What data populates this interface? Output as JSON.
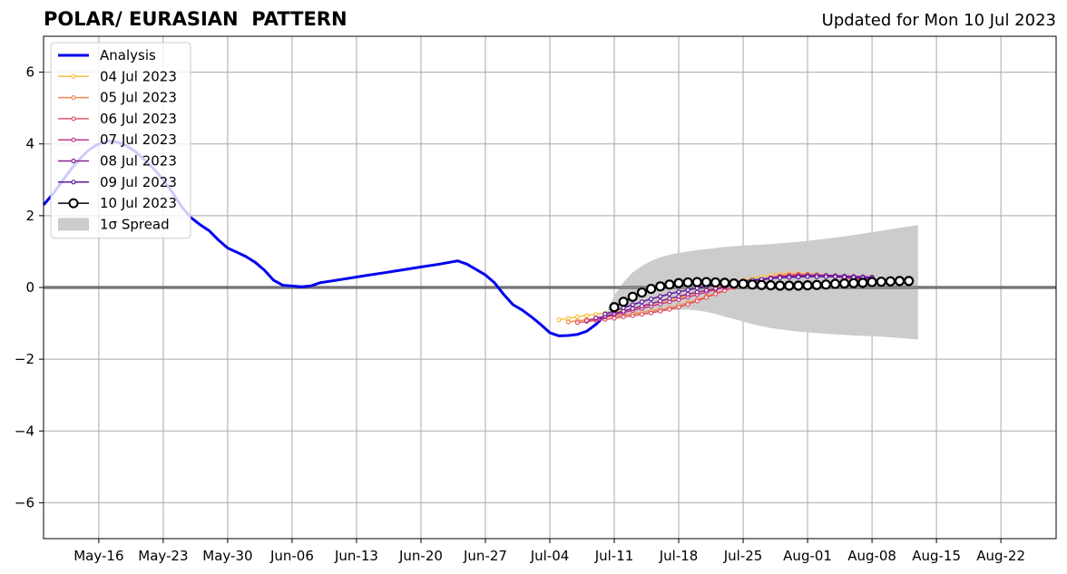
{
  "header": {
    "title": "POLAR/ EURASIAN  PATTERN",
    "updated": "Updated for Mon 10 Jul 2023"
  },
  "chart_data": {
    "type": "line",
    "title": "POLAR/ EURASIAN  PATTERN",
    "xlabel": "",
    "ylabel": "",
    "x_axis_type": "date",
    "xlim": [
      "2023-05-10",
      "2023-08-28"
    ],
    "ylim": [
      -7,
      7
    ],
    "x_ticks": [
      {
        "date": "2023-05-16",
        "label": "May-16"
      },
      {
        "date": "2023-05-23",
        "label": "May-23"
      },
      {
        "date": "2023-05-30",
        "label": "May-30"
      },
      {
        "date": "2023-06-06",
        "label": "Jun-06"
      },
      {
        "date": "2023-06-13",
        "label": "Jun-13"
      },
      {
        "date": "2023-06-20",
        "label": "Jun-20"
      },
      {
        "date": "2023-06-27",
        "label": "Jun-27"
      },
      {
        "date": "2023-07-04",
        "label": "Jul-04"
      },
      {
        "date": "2023-07-11",
        "label": "Jul-11"
      },
      {
        "date": "2023-07-18",
        "label": "Jul-18"
      },
      {
        "date": "2023-07-25",
        "label": "Jul-25"
      },
      {
        "date": "2023-08-01",
        "label": "Aug-01"
      },
      {
        "date": "2023-08-08",
        "label": "Aug-08"
      },
      {
        "date": "2023-08-15",
        "label": "Aug-15"
      },
      {
        "date": "2023-08-22",
        "label": "Aug-22"
      }
    ],
    "y_ticks": [
      {
        "value": 6,
        "label": "6"
      },
      {
        "value": 4,
        "label": "4"
      },
      {
        "value": 2,
        "label": "2"
      },
      {
        "value": 0,
        "label": "0"
      },
      {
        "value": -2,
        "label": "−2"
      },
      {
        "value": -4,
        "label": "−4"
      },
      {
        "value": -6,
        "label": "−6"
      }
    ],
    "grid": true,
    "zero_line": true,
    "legend_position": "top-left",
    "analysis": {
      "name": "Analysis",
      "color": "#0000ee",
      "points": [
        [
          "2023-05-10",
          2.3
        ],
        [
          "2023-05-11",
          2.6
        ],
        [
          "2023-05-12",
          2.95
        ],
        [
          "2023-05-13",
          3.3
        ],
        [
          "2023-05-14",
          3.6
        ],
        [
          "2023-05-15",
          3.85
        ],
        [
          "2023-05-16",
          4.0
        ],
        [
          "2023-05-17",
          4.08
        ],
        [
          "2023-05-18",
          4.05
        ],
        [
          "2023-05-19",
          3.95
        ],
        [
          "2023-05-20",
          3.78
        ],
        [
          "2023-05-21",
          3.55
        ],
        [
          "2023-05-22",
          3.3
        ],
        [
          "2023-05-23",
          3.0
        ],
        [
          "2023-05-24",
          2.65
        ],
        [
          "2023-05-25",
          2.25
        ],
        [
          "2023-05-26",
          1.95
        ],
        [
          "2023-05-27",
          1.75
        ],
        [
          "2023-05-28",
          1.58
        ],
        [
          "2023-05-29",
          1.32
        ],
        [
          "2023-05-30",
          1.1
        ],
        [
          "2023-05-31",
          0.98
        ],
        [
          "2023-06-01",
          0.86
        ],
        [
          "2023-06-02",
          0.7
        ],
        [
          "2023-06-03",
          0.48
        ],
        [
          "2023-06-04",
          0.2
        ],
        [
          "2023-06-05",
          0.06
        ],
        [
          "2023-06-06",
          0.04
        ],
        [
          "2023-06-07",
          0.02
        ],
        [
          "2023-06-08",
          0.04
        ],
        [
          "2023-06-09",
          0.13
        ],
        [
          "2023-06-10",
          0.17
        ],
        [
          "2023-06-12",
          0.25
        ],
        [
          "2023-06-14",
          0.33
        ],
        [
          "2023-06-16",
          0.41
        ],
        [
          "2023-06-18",
          0.49
        ],
        [
          "2023-06-20",
          0.57
        ],
        [
          "2023-06-22",
          0.65
        ],
        [
          "2023-06-24",
          0.74
        ],
        [
          "2023-06-25",
          0.65
        ],
        [
          "2023-06-26",
          0.5
        ],
        [
          "2023-06-27",
          0.35
        ],
        [
          "2023-06-28",
          0.13
        ],
        [
          "2023-06-29",
          -0.2
        ],
        [
          "2023-06-30",
          -0.48
        ],
        [
          "2023-07-01",
          -0.63
        ],
        [
          "2023-07-02",
          -0.82
        ],
        [
          "2023-07-03",
          -1.03
        ],
        [
          "2023-07-04",
          -1.26
        ],
        [
          "2023-07-05",
          -1.35
        ],
        [
          "2023-07-06",
          -1.34
        ],
        [
          "2023-07-07",
          -1.31
        ],
        [
          "2023-07-08",
          -1.22
        ],
        [
          "2023-07-09",
          -1.03
        ],
        [
          "2023-07-10",
          -0.78
        ]
      ]
    },
    "forecasts": [
      {
        "name": "04 Jul 2023",
        "color": "#f6c23e",
        "start": "2023-07-05",
        "values": [
          -0.9,
          -0.86,
          -0.82,
          -0.78,
          -0.75,
          -0.72,
          -0.68,
          -0.65,
          -0.6,
          -0.55,
          -0.5,
          -0.44,
          -0.38,
          -0.3,
          -0.22,
          -0.15,
          -0.07,
          0.0,
          0.07,
          0.13,
          0.2,
          0.26,
          0.3,
          0.34,
          0.37,
          0.39,
          0.39,
          0.38,
          0.36,
          0.33,
          0.3,
          0.27,
          0.24,
          0.2,
          0.17
        ]
      },
      {
        "name": "05 Jul 2023",
        "color": "#f08a4b",
        "start": "2023-07-06",
        "values": [
          -0.96,
          -0.93,
          -0.9,
          -0.86,
          -0.83,
          -0.8,
          -0.77,
          -0.73,
          -0.7,
          -0.66,
          -0.62,
          -0.57,
          -0.5,
          -0.43,
          -0.34,
          -0.25,
          -0.16,
          -0.07,
          0.0,
          0.08,
          0.15,
          0.22,
          0.27,
          0.32,
          0.35,
          0.37,
          0.37,
          0.36,
          0.34,
          0.31,
          0.28,
          0.25,
          0.22,
          0.2
        ]
      },
      {
        "name": "06 Jul 2023",
        "color": "#e0566a",
        "start": "2023-07-07",
        "values": [
          -0.98,
          -0.95,
          -0.92,
          -0.89,
          -0.86,
          -0.82,
          -0.79,
          -0.75,
          -0.71,
          -0.66,
          -0.61,
          -0.55,
          -0.47,
          -0.38,
          -0.28,
          -0.18,
          -0.09,
          0.0,
          0.08,
          0.15,
          0.22,
          0.28,
          0.32,
          0.35,
          0.36,
          0.35,
          0.34,
          0.32,
          0.3,
          0.27,
          0.25,
          0.22,
          0.2
        ]
      },
      {
        "name": "07 Jul 2023",
        "color": "#c23a88",
        "start": "2023-07-08",
        "values": [
          -0.92,
          -0.88,
          -0.82,
          -0.76,
          -0.7,
          -0.64,
          -0.58,
          -0.52,
          -0.46,
          -0.4,
          -0.34,
          -0.27,
          -0.2,
          -0.13,
          -0.06,
          0.0,
          0.06,
          0.12,
          0.18,
          0.23,
          0.27,
          0.3,
          0.32,
          0.33,
          0.34,
          0.33,
          0.32,
          0.3,
          0.28,
          0.26,
          0.24,
          0.22
        ]
      },
      {
        "name": "08 Jul 2023",
        "color": "#8b1f96",
        "start": "2023-07-09",
        "values": [
          -0.85,
          -0.8,
          -0.73,
          -0.66,
          -0.59,
          -0.52,
          -0.45,
          -0.38,
          -0.31,
          -0.25,
          -0.19,
          -0.13,
          -0.08,
          -0.03,
          0.02,
          0.07,
          0.12,
          0.17,
          0.21,
          0.25,
          0.28,
          0.3,
          0.32,
          0.33,
          0.34,
          0.34,
          0.33,
          0.32,
          0.31,
          0.3,
          0.29
        ]
      },
      {
        "name": "09 Jul 2023",
        "color": "#5a189a",
        "start": "2023-07-10",
        "values": [
          -0.74,
          -0.66,
          -0.57,
          -0.48,
          -0.4,
          -0.32,
          -0.25,
          -0.18,
          -0.12,
          -0.07,
          -0.02,
          0.03,
          0.07,
          0.11,
          0.15,
          0.18,
          0.21,
          0.23,
          0.25,
          0.27,
          0.28,
          0.29,
          0.3,
          0.3,
          0.3,
          0.3,
          0.29,
          0.28,
          0.27,
          0.26
        ]
      }
    ],
    "current_forecast": {
      "name": "10 Jul 2023",
      "color": "#000000",
      "marker_fill": "#ffffff",
      "start": "2023-07-11",
      "values": [
        -0.55,
        -0.4,
        -0.26,
        -0.14,
        -0.04,
        0.03,
        0.08,
        0.12,
        0.14,
        0.15,
        0.15,
        0.14,
        0.13,
        0.11,
        0.1,
        0.08,
        0.07,
        0.06,
        0.05,
        0.05,
        0.05,
        0.06,
        0.07,
        0.08,
        0.1,
        0.11,
        0.12,
        0.13,
        0.15,
        0.16,
        0.17,
        0.18,
        0.18
      ]
    },
    "spread": {
      "name": "1σ Spread",
      "color": "#cccccc",
      "start": "2023-07-10",
      "upper": [
        -0.78,
        -0.22,
        0.15,
        0.42,
        0.6,
        0.74,
        0.84,
        0.91,
        0.96,
        1.0,
        1.04,
        1.07,
        1.1,
        1.13,
        1.15,
        1.17,
        1.18,
        1.19,
        1.21,
        1.23,
        1.25,
        1.27,
        1.3,
        1.33,
        1.36,
        1.39,
        1.42,
        1.46,
        1.5,
        1.54,
        1.58,
        1.62,
        1.66,
        1.7,
        1.74
      ],
      "lower": [
        -0.78,
        -0.85,
        -0.82,
        -0.78,
        -0.74,
        -0.7,
        -0.67,
        -0.64,
        -0.62,
        -0.62,
        -0.64,
        -0.68,
        -0.74,
        -0.81,
        -0.88,
        -0.95,
        -1.02,
        -1.08,
        -1.13,
        -1.17,
        -1.2,
        -1.23,
        -1.25,
        -1.27,
        -1.29,
        -1.31,
        -1.32,
        -1.34,
        -1.35,
        -1.36,
        -1.37,
        -1.39,
        -1.41,
        -1.43,
        -1.45
      ]
    }
  }
}
